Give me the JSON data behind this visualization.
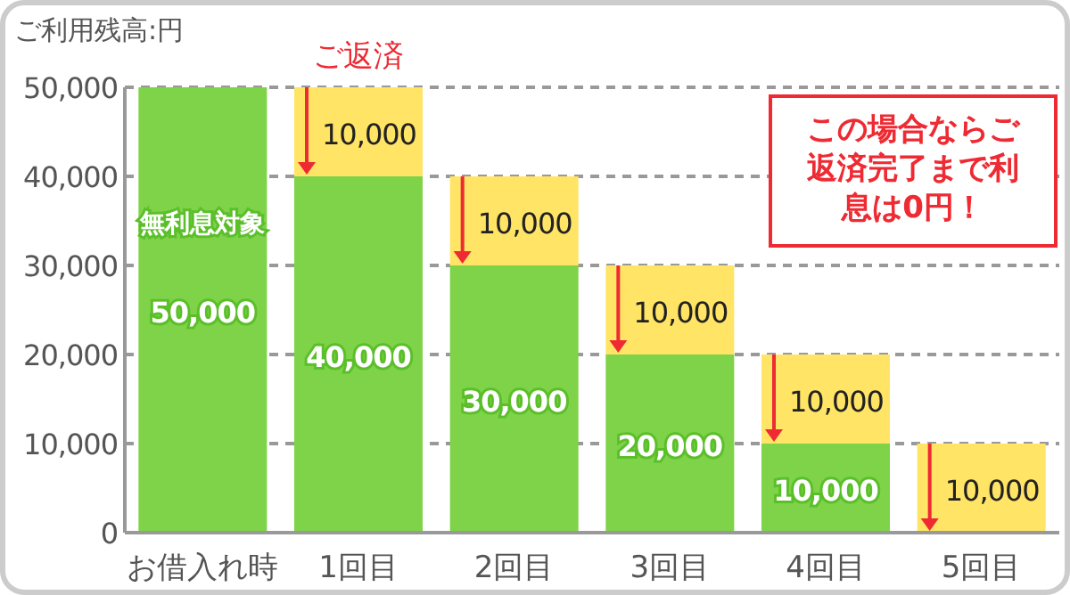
{
  "chart_data": {
    "type": "bar",
    "stacked": true,
    "ylabel": "ご利用残高:円",
    "categories": [
      "お借入れ時",
      "1回目",
      "2回目",
      "3回目",
      "4回目",
      "5回目"
    ],
    "series": [
      {
        "color": "#7ed348",
        "values": [
          50000,
          40000,
          30000,
          20000,
          10000,
          0
        ],
        "value_labels": [
          "50,000",
          "40,000",
          "30,000",
          "20,000",
          "10,000",
          null
        ]
      },
      {
        "color": "#ffe466",
        "values": [
          null,
          10000,
          10000,
          10000,
          10000,
          10000
        ],
        "value_labels": [
          null,
          "10,000",
          "10,000",
          "10,000",
          "10,000",
          "10,000"
        ]
      }
    ],
    "ylim": [
      0,
      50000
    ],
    "yticks": [
      0,
      {
        "value": 10000,
        "label": "10,000"
      },
      {
        "value": 20000,
        "label": "20,000"
      },
      {
        "value": 30000,
        "label": "30,000"
      },
      {
        "value": 40000,
        "label": "40,000"
      },
      {
        "value": 50000,
        "label": "50,000"
      }
    ],
    "grid": "y",
    "annotations": [
      {
        "text": "ご返済",
        "x": "1回目",
        "y": 50000
      },
      "無利息対象",
      "この場合ならご返済完了まで利息は0円！"
    ]
  }
}
